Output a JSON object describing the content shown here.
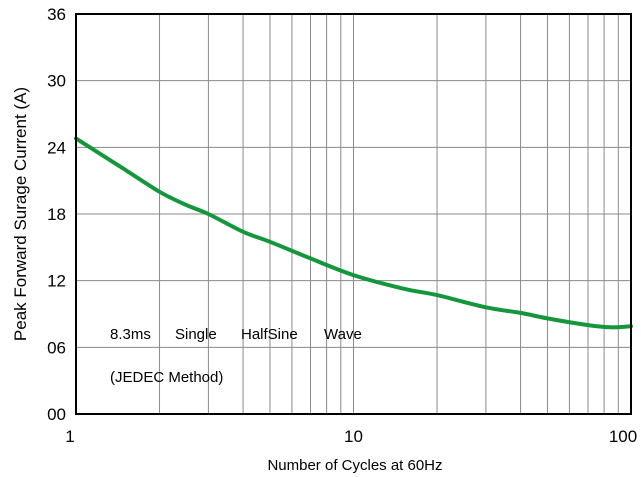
{
  "chart_data": {
    "type": "line",
    "title": "",
    "xlabel": "Number of Cycles at 60Hz",
    "ylabel": "Peak Forward Surage Current (A)",
    "x_scale": "log",
    "xlim": [
      1,
      100
    ],
    "ylim": [
      0,
      36
    ],
    "grid": true,
    "x_tick_labels": [
      "1",
      "10",
      "100"
    ],
    "y_tick_labels": [
      "00",
      "06",
      "12",
      "18",
      "24",
      "30",
      "36"
    ],
    "annotations": [
      "8.3ms",
      "Single",
      "HalfSine",
      "Wave",
      "(JEDEC Method)"
    ],
    "series": [
      {
        "color": "#14963c",
        "x": [
          1,
          1.5,
          2,
          2.5,
          3,
          4,
          5,
          7,
          10,
          15,
          20,
          30,
          40,
          50,
          70,
          85,
          100
        ],
        "y": [
          24.8,
          22.0,
          20.0,
          18.8,
          18.0,
          16.4,
          15.5,
          14.0,
          12.5,
          11.3,
          10.7,
          9.6,
          9.1,
          8.6,
          8.0,
          7.8,
          7.9
        ]
      }
    ]
  }
}
